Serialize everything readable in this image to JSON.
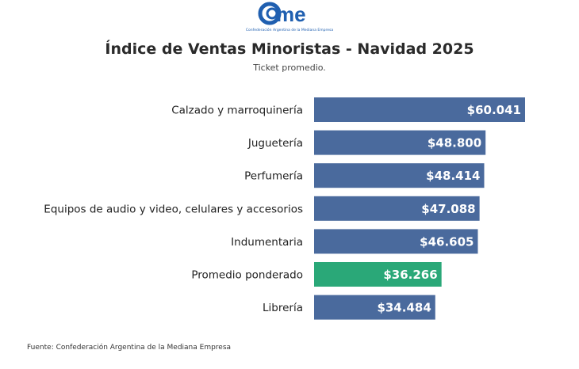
{
  "logo": {
    "text": "came",
    "subtext": "Confederación Argentina de la Mediana Empresa",
    "color": "#1f5fb0"
  },
  "chart_data": {
    "type": "bar",
    "orientation": "horizontal",
    "title": "Índice de Ventas Minoristas - Navidad 2025",
    "subtitle": "Ticket promedio.",
    "categories": [
      "Calzado y marroquinería",
      "Juguetería",
      "Perfumería",
      "Equipos de audio y video, celulares y accesorios",
      "Indumentaria",
      "Promedio ponderado",
      "Librería"
    ],
    "values": [
      60041,
      48800,
      48414,
      47088,
      46605,
      36266,
      34484
    ],
    "data_labels": [
      "$60.041",
      "$48.800",
      "$48.414",
      "$47.088",
      "$46.605",
      "$36.266",
      "$34.484"
    ],
    "highlight": [
      false,
      false,
      false,
      false,
      false,
      true,
      false
    ],
    "colors": {
      "bar": "#4a6a9d",
      "highlight": "#2aa878"
    },
    "xlim": [
      0,
      60041
    ],
    "grid": false,
    "legend": "none"
  },
  "source": "Fuente: Confederación Argentina de la Mediana Empresa"
}
